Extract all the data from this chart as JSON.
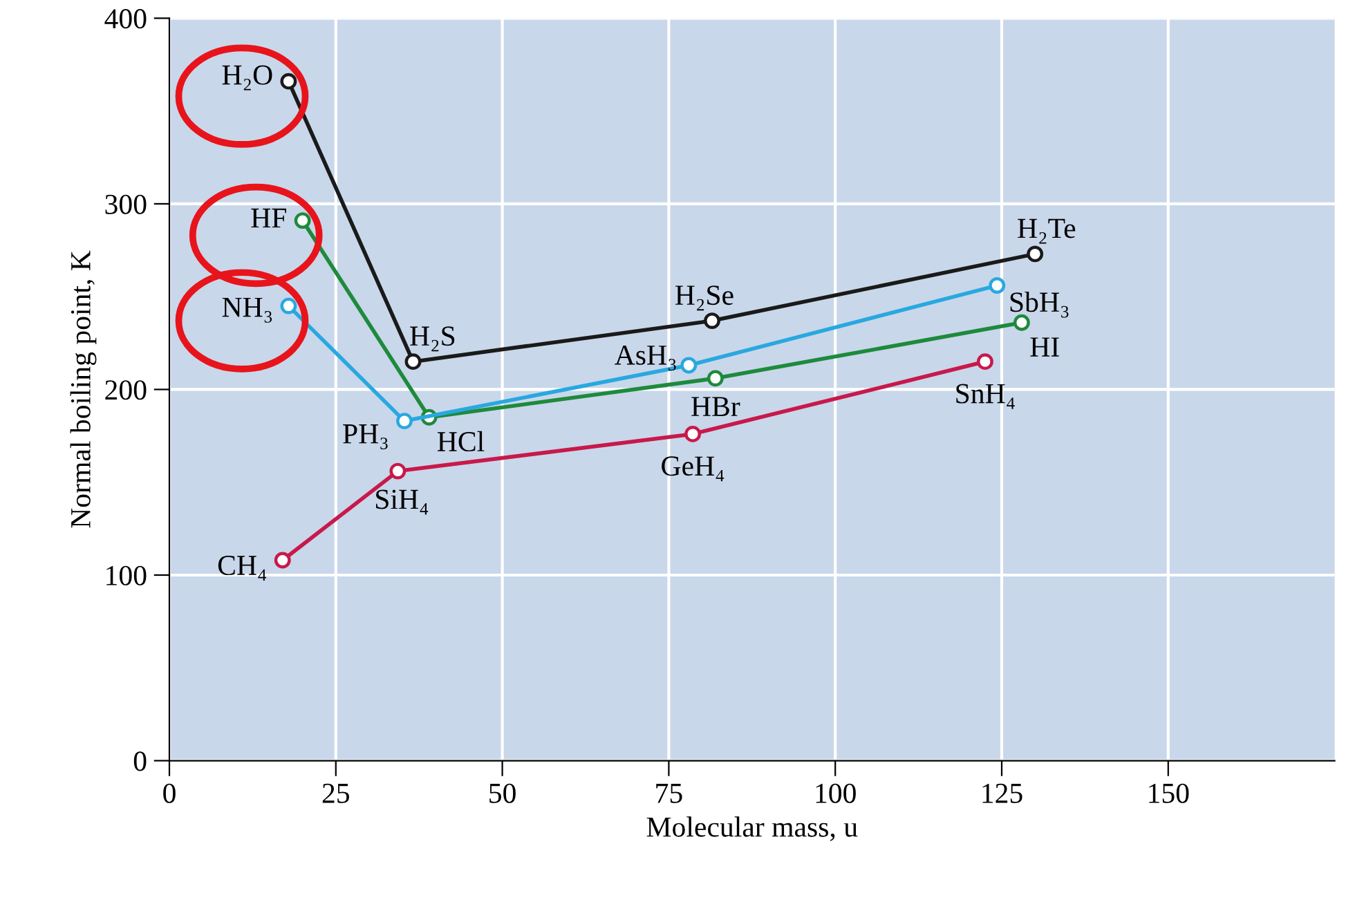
{
  "chart_data": {
    "type": "line",
    "xlabel": "Molecular mass, u",
    "ylabel": "Normal boiling point, K",
    "xlim": [
      0,
      175
    ],
    "ylim": [
      0,
      400
    ],
    "xticks": [
      0,
      25,
      50,
      75,
      100,
      125,
      150
    ],
    "yticks": [
      0,
      100,
      200,
      300,
      400
    ],
    "grid": true,
    "marker": "circle",
    "line_style": "solid",
    "series": [
      {
        "color": "#1a1a1a",
        "x": [
          17.9,
          36.6,
          81.5,
          130
        ],
        "values": [
          366,
          215,
          237,
          273
        ]
      },
      {
        "color": "#1e8a3c",
        "x": [
          20,
          39,
          82,
          128
        ],
        "values": [
          291,
          185,
          206,
          236
        ]
      },
      {
        "color": "#29a8e0",
        "x": [
          17.9,
          35.3,
          78,
          124.3
        ],
        "values": [
          245,
          183,
          213,
          256
        ]
      },
      {
        "color": "#c8194b",
        "x": [
          17,
          34.3,
          78.6,
          122.5
        ],
        "values": [
          108,
          156,
          176,
          215
        ]
      }
    ],
    "annotations": [
      {
        "text": "H₂O",
        "x": 17.9,
        "y": 366
      },
      {
        "text": "H₂S",
        "x": 36.6,
        "y": 215
      },
      {
        "text": "H₂Se",
        "x": 81.5,
        "y": 237
      },
      {
        "text": "H₂Te",
        "x": 130,
        "y": 273
      },
      {
        "text": "HF",
        "x": 20,
        "y": 291
      },
      {
        "text": "HCl",
        "x": 39,
        "y": 185
      },
      {
        "text": "HBr",
        "x": 82,
        "y": 206
      },
      {
        "text": "HI",
        "x": 128,
        "y": 236
      },
      {
        "text": "NH₃",
        "x": 17.9,
        "y": 245
      },
      {
        "text": "PH₃",
        "x": 35.3,
        "y": 183
      },
      {
        "text": "AsH₃",
        "x": 78,
        "y": 213
      },
      {
        "text": "SbH₃",
        "x": 124.3,
        "y": 256
      },
      {
        "text": "CH₄",
        "x": 17,
        "y": 108
      },
      {
        "text": "SiH₄",
        "x": 34.3,
        "y": 156
      },
      {
        "text": "GeH₄",
        "x": 78.6,
        "y": 176
      },
      {
        "text": "SnH₄",
        "x": 122.5,
        "y": 215
      }
    ]
  }
}
